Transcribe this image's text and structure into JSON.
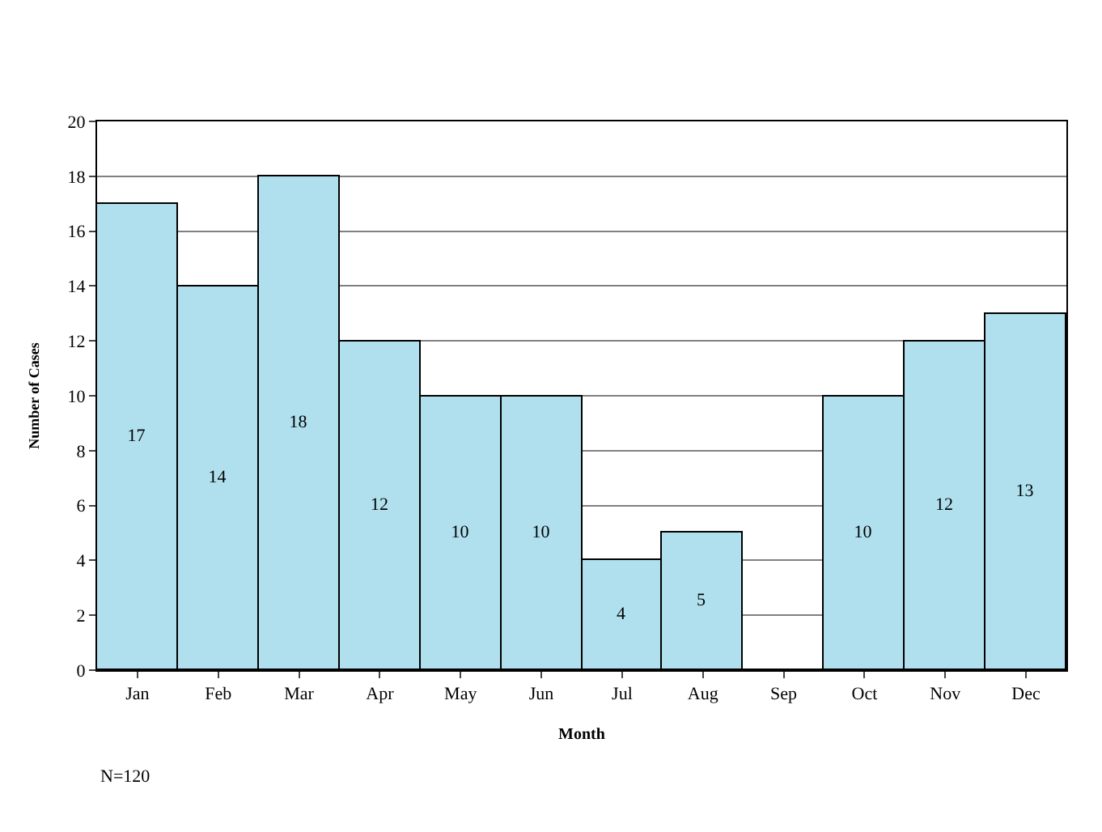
{
  "chart_data": {
    "type": "bar",
    "xlabel": "Month",
    "ylabel": "Number of Cases",
    "categories": [
      "Jan",
      "Feb",
      "Mar",
      "Apr",
      "May",
      "Jun",
      "Jul",
      "Aug",
      "Sep",
      "Oct",
      "Nov",
      "Dec"
    ],
    "values": [
      17,
      14,
      18,
      12,
      10,
      10,
      4,
      5,
      0,
      10,
      12,
      13
    ],
    "value_labels": [
      "17",
      "14",
      "18",
      "12",
      "10",
      "10",
      "4",
      "5",
      null,
      "10",
      "12",
      "13"
    ],
    "color": "#b0e0ee",
    "ylim": [
      0,
      20
    ],
    "yticks": [
      0,
      2,
      4,
      6,
      8,
      10,
      12,
      14,
      16,
      18,
      20
    ],
    "grid": "y",
    "annotations": [
      "N=120"
    ]
  }
}
